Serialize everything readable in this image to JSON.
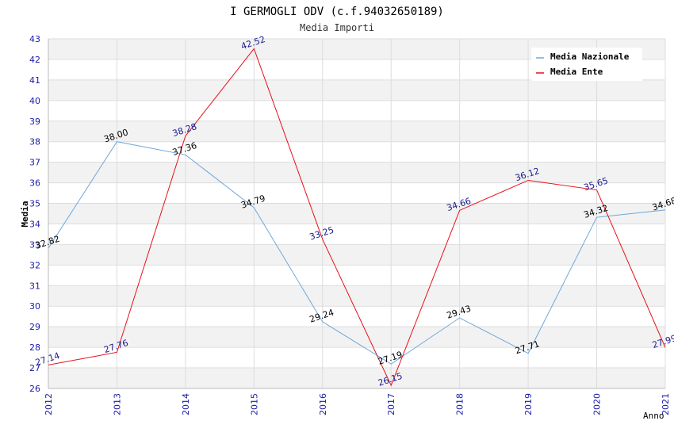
{
  "chart_data": {
    "type": "line",
    "title": "I GERMOGLI ODV (c.f.94032650189)",
    "subtitle": "Media Importi",
    "xlabel": "Anno",
    "ylabel": "Media",
    "ylim": [
      26,
      43
    ],
    "yticks": [
      26,
      27,
      28,
      29,
      30,
      31,
      32,
      33,
      34,
      35,
      36,
      37,
      38,
      39,
      40,
      41,
      42,
      43
    ],
    "categories": [
      "2012",
      "2013",
      "2014",
      "2015",
      "2016",
      "2017",
      "2018",
      "2019",
      "2020",
      "2021"
    ],
    "grid": true,
    "legend_position": "top-right",
    "series": [
      {
        "name": "Media Nazionale",
        "color": "#6fa8dc",
        "label_color": "#000000",
        "values": [
          32.82,
          38.0,
          37.36,
          34.79,
          29.24,
          27.19,
          29.43,
          27.71,
          34.32,
          34.68
        ],
        "labels": [
          "32.82",
          "38.00",
          "37.36",
          "34.79",
          "29.24",
          "27.19",
          "29.43",
          "27.71",
          "34.32",
          "34.68"
        ]
      },
      {
        "name": "Media Ente",
        "color": "#e8101a",
        "label_color": "#1a1a8c",
        "values": [
          27.14,
          27.76,
          38.28,
          42.52,
          33.25,
          26.15,
          34.66,
          36.12,
          35.65,
          27.99
        ],
        "labels": [
          "27.14",
          "27.76",
          "38.28",
          "42.52",
          "33.25",
          "26.15",
          "34.66",
          "36.12",
          "35.65",
          "27.99"
        ]
      }
    ],
    "colors": {
      "tick_label": "#1a1aaa",
      "band": "#f2f2f2",
      "grid": "#dddddd",
      "axis": "#bbbbbb"
    }
  }
}
